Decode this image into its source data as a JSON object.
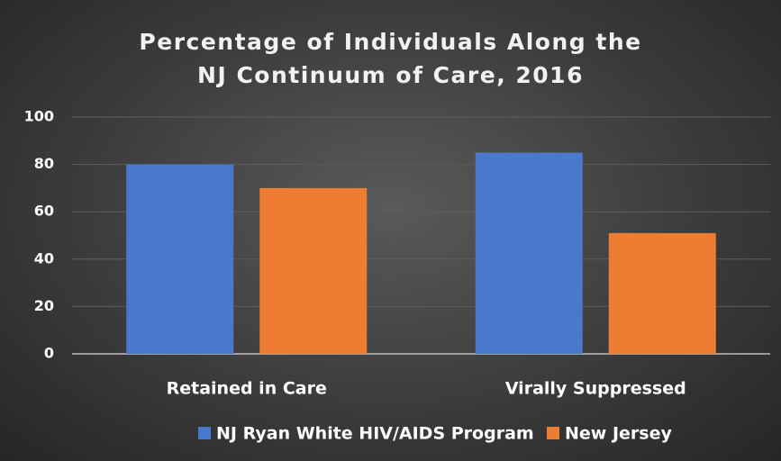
{
  "chart_data": {
    "type": "bar",
    "title": "Percentage of Individuals Along the NJ Continuum of Care, 2016",
    "categories": [
      "Retained in Care",
      "Virally Suppressed"
    ],
    "series": [
      {
        "name": "NJ Ryan White HIV/AIDS Program",
        "color": "#4a78cc",
        "values": [
          80,
          85
        ]
      },
      {
        "name": "New Jersey",
        "color": "#ee7d31",
        "values": [
          70,
          51
        ]
      }
    ],
    "ylim": [
      0,
      100
    ],
    "yticks": [
      0,
      20,
      40,
      60,
      80,
      100
    ],
    "grid": true,
    "legend": "bottom"
  }
}
